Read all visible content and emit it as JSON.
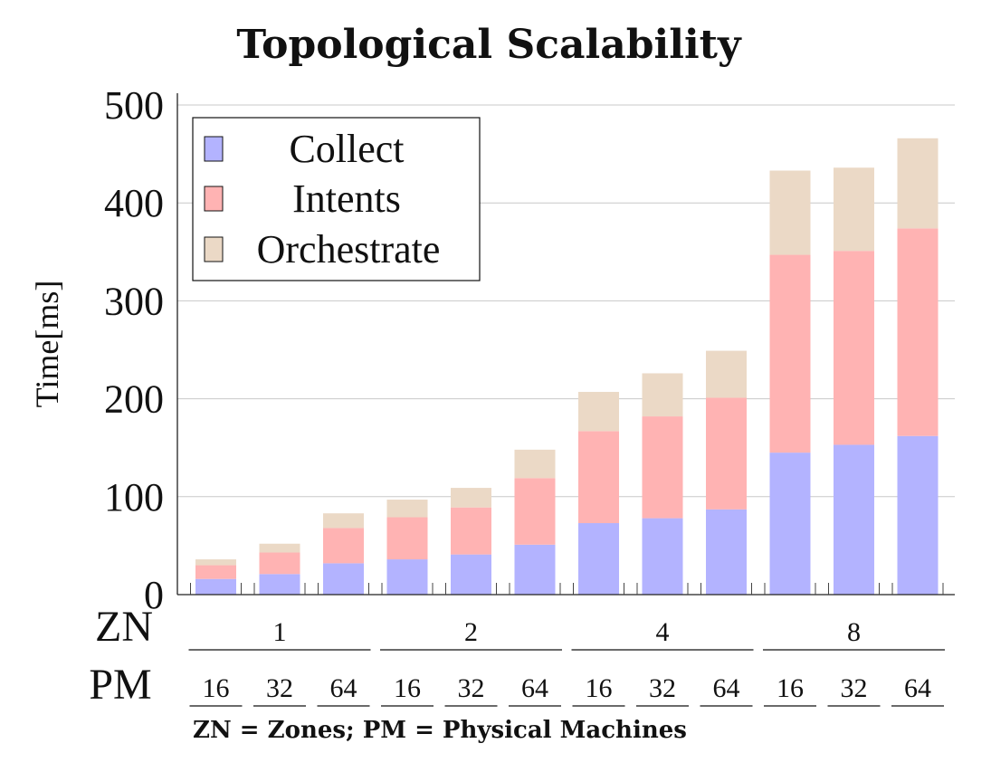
{
  "chart_data": {
    "type": "bar",
    "stacked": true,
    "title": "Topological Scalability",
    "ylabel": "Time[ms]",
    "ylim": [
      0,
      500
    ],
    "yticks": [
      0,
      100,
      200,
      300,
      400,
      500
    ],
    "grid": true,
    "legend_position": "top-left",
    "categories": [
      {
        "zn": "1",
        "pm": "16"
      },
      {
        "zn": "1",
        "pm": "32"
      },
      {
        "zn": "1",
        "pm": "64"
      },
      {
        "zn": "2",
        "pm": "16"
      },
      {
        "zn": "2",
        "pm": "32"
      },
      {
        "zn": "2",
        "pm": "64"
      },
      {
        "zn": "4",
        "pm": "16"
      },
      {
        "zn": "4",
        "pm": "32"
      },
      {
        "zn": "4",
        "pm": "64"
      },
      {
        "zn": "8",
        "pm": "16"
      },
      {
        "zn": "8",
        "pm": "32"
      },
      {
        "zn": "8",
        "pm": "64"
      }
    ],
    "zn_groups": [
      "1",
      "2",
      "4",
      "8"
    ],
    "row_labels": {
      "zn": "ZN",
      "pm": "PM"
    },
    "series": [
      {
        "name": "Collect",
        "color": "#b3b3ff",
        "values": [
          16,
          21,
          32,
          36,
          41,
          51,
          73,
          78,
          87,
          145,
          153,
          162
        ]
      },
      {
        "name": "Intents",
        "color": "#ffb3b3",
        "values": [
          14,
          22,
          36,
          43,
          48,
          68,
          94,
          104,
          114,
          202,
          198,
          212
        ]
      },
      {
        "name": "Orchestrate",
        "color": "#ebd9c6",
        "values": [
          6,
          9,
          15,
          18,
          20,
          29,
          40,
          44,
          48,
          86,
          85,
          92
        ]
      }
    ],
    "footnote": "ZN = Zones; PM = Physical Machines"
  }
}
